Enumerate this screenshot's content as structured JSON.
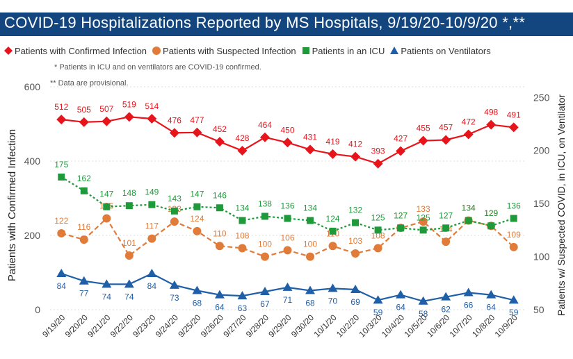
{
  "title": "COVID-19 Hospitalizations Reported by MS Hospitals, 9/19/20-10/9/20 *,**",
  "notes": [
    "* Patients in ICU and on ventilators are COVID-19 confirmed.",
    "** Data are provisional."
  ],
  "chart_data": {
    "type": "line",
    "categories": [
      "9/19/20",
      "9/20/20",
      "9/21/20",
      "9/22/20",
      "9/23/20",
      "9/24/20",
      "9/25/20",
      "9/26/20",
      "9/27/20",
      "9/28/20",
      "9/29/20",
      "9/30/20",
      "10/1/20",
      "10/2/20",
      "10/3/20",
      "10/4/20",
      "10/5/20",
      "10/6/20",
      "10/7/20",
      "10/8/20",
      "10/9/20"
    ],
    "ylabel_left": "Patients with Confirmed Infection",
    "ylabel_right": "Patients w/ Suspected COVID, in ICU, on Ventilator",
    "ylim_left": [
      0,
      600
    ],
    "yticks_left": [
      0,
      200,
      400,
      600
    ],
    "ylim_right": [
      50,
      260
    ],
    "yticks_right": [
      50,
      100,
      150,
      200,
      250
    ],
    "series": [
      {
        "name": "Patients with Confirmed Infection",
        "axis": "left",
        "color": "#e8141b",
        "marker": "diamond",
        "dash": false,
        "values": [
          512,
          505,
          507,
          519,
          514,
          476,
          477,
          452,
          428,
          464,
          450,
          431,
          419,
          412,
          393,
          427,
          455,
          457,
          472,
          498,
          491
        ]
      },
      {
        "name": "Patients with Suspected Infection",
        "axis": "right",
        "color": "#e07b39",
        "marker": "circle",
        "dash": true,
        "values": [
          122,
          116,
          136,
          101,
          117,
          133,
          124,
          110,
          108,
          100,
          106,
          100,
          110,
          103,
          108,
          127,
          133,
          114,
          134,
          129,
          109
        ]
      },
      {
        "name": "Patients in an ICU",
        "axis": "right",
        "color": "#1f9a3b",
        "marker": "square",
        "dash": true,
        "values": [
          175,
          162,
          147,
          148,
          149,
          143,
          147,
          146,
          134,
          138,
          136,
          134,
          124,
          132,
          125,
          127,
          125,
          127,
          134,
          129,
          136
        ]
      },
      {
        "name": "Patients on Ventilators",
        "axis": "right",
        "color": "#1f5fa8",
        "marker": "triangle",
        "dash": false,
        "values": [
          84,
          77,
          74,
          74,
          84,
          73,
          68,
          64,
          63,
          67,
          71,
          68,
          70,
          69,
          59,
          64,
          58,
          62,
          66,
          64,
          59
        ]
      }
    ],
    "legend_position": "top",
    "grid": true
  }
}
